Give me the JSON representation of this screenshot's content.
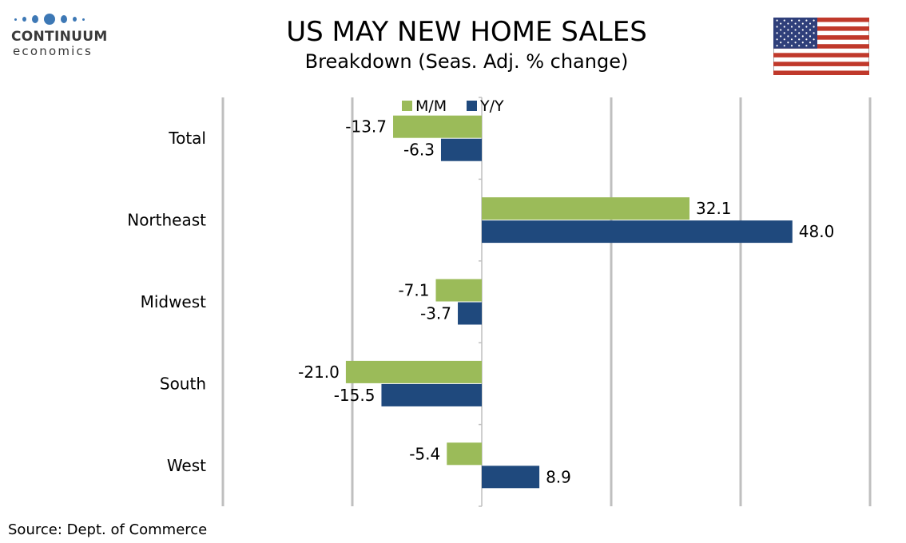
{
  "logo": {
    "line1": "CONTINUUM",
    "line2": "economics"
  },
  "title": "US MAY NEW HOME SALES",
  "subtitle": "Breakdown (Seas. Adj. % change)",
  "source": "Source: Dept. of Commerce",
  "flag_icon": "us-flag-icon",
  "colors": {
    "mm": "#9bbb59",
    "yy": "#1f497d",
    "grid": "#bfbfbf",
    "logo": "#3d78b5"
  },
  "chart_data": {
    "type": "bar",
    "orientation": "horizontal",
    "categories": [
      "Total",
      "Northeast",
      "Midwest",
      "South",
      "West"
    ],
    "series": [
      {
        "name": "M/M",
        "values": [
          -13.7,
          32.1,
          -7.1,
          -21.0,
          -5.4
        ]
      },
      {
        "name": "Y/Y",
        "values": [
          -6.3,
          48.0,
          -3.7,
          -15.5,
          8.9
        ]
      }
    ],
    "value_labels": [
      [
        "-13.7",
        "32.1",
        "-7.1",
        "-21.0",
        "-5.4"
      ],
      [
        "-6.3",
        "48.0",
        "-3.7",
        "-15.5",
        "8.9"
      ]
    ],
    "xlim": [
      -40,
      60
    ],
    "gridlines": [
      -40,
      -20,
      20,
      40,
      60
    ],
    "grid": true,
    "legend_position": "top-center",
    "title": "US MAY NEW HOME SALES",
    "subtitle": "Breakdown (Seas. Adj. % change)"
  }
}
